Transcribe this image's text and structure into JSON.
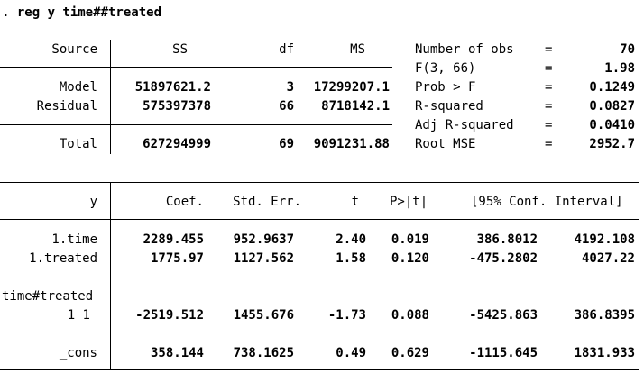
{
  "command": ". reg y time##treated",
  "anova": {
    "headers": [
      "Source",
      "SS",
      "df",
      "MS"
    ],
    "rows": [
      {
        "source": "Model",
        "ss": "51897621.2",
        "df": "3",
        "ms": "17299207.1"
      },
      {
        "source": "Residual",
        "ss": "575397378",
        "df": "66",
        "ms": "8718142.1"
      }
    ],
    "total": {
      "source": "Total",
      "ss": "627294999",
      "df": "69",
      "ms": "9091231.88"
    }
  },
  "stats": [
    {
      "label": "Number of obs",
      "eq": "=",
      "value": "70"
    },
    {
      "label": "F(3, 66)",
      "eq": "=",
      "value": "1.98"
    },
    {
      "label": "Prob > F",
      "eq": "=",
      "value": "0.1249"
    },
    {
      "label": "R-squared",
      "eq": "=",
      "value": "0.0827"
    },
    {
      "label": "Adj R-squared",
      "eq": "=",
      "value": "0.0410"
    },
    {
      "label": "Root MSE",
      "eq": "=",
      "value": "2952.7"
    }
  ],
  "coef": {
    "headers": {
      "y": "y",
      "coef": "Coef.",
      "se": "Std. Err.",
      "t": "t",
      "p": "P>|t|",
      "ci": "[95% Conf. Interval]"
    },
    "rows": [
      {
        "name": "1.time",
        "coef": "2289.455",
        "se": "952.9637",
        "t": "2.40",
        "p": "0.019",
        "lo": "386.8012",
        "hi": "4192.108"
      },
      {
        "name": "1.treated",
        "coef": "1775.97",
        "se": "1127.562",
        "t": "1.58",
        "p": "0.120",
        "lo": "-475.2802",
        "hi": "4027.22"
      },
      {
        "name": "1 1",
        "coef": "-2519.512",
        "se": "1455.676",
        "t": "-1.73",
        "p": "0.088",
        "lo": "-5425.863",
        "hi": "386.8395"
      },
      {
        "name": "_cons",
        "coef": "358.144",
        "se": "738.1625",
        "t": "0.49",
        "p": "0.629",
        "lo": "-1115.645",
        "hi": "1831.933"
      }
    ],
    "group_label": "time#treated"
  }
}
